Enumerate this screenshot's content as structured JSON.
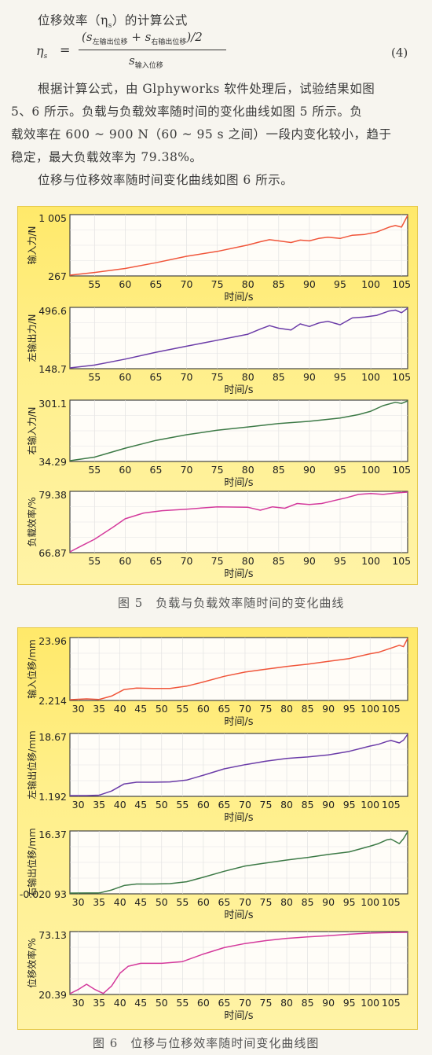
{
  "text": {
    "para1_label": "位移效率（η",
    "para1_sub": "s",
    "para1_rest": "）的计算公式",
    "eq_lhs": "η",
    "eq_lhs_sub": "s",
    "eq_eq": "=",
    "eq_num_open": "(s",
    "eq_num_s1": "左输出位移",
    "eq_num_plus": " + s",
    "eq_num_s2": "右输出位移",
    "eq_num_close": ")/2",
    "eq_den": "s",
    "eq_den_sub": "输入位移",
    "eq_no": "(4)",
    "line1": "根据计算公式，由 Glphyworks 软件处理后，试验结果如图",
    "line2": "5、6 所示。负载与负载效率随时间的变化曲线如图 5 所示。负",
    "line3": "载效率在 600 ~ 900 N（60 ~ 95 s 之间）一段内变化较小，趋于",
    "line4": "稳定，最大负载效率为 79.38%。",
    "line5": "位移与位移效率随时间变化曲线如图 6 所示。"
  },
  "figure5": {
    "caption": "图 5　负载与负载效率随时间的变化曲线",
    "xlabel": "时间/s",
    "xticks": [
      "55",
      "60",
      "65",
      "70",
      "75",
      "80",
      "85",
      "90",
      "95",
      "100",
      "105"
    ]
  },
  "figure6": {
    "caption": "图 6　位移与位移效率随时间变化曲线图",
    "xlabel": "时间/s",
    "xticks": [
      "30",
      "35",
      "40",
      "45",
      "50",
      "55",
      "60",
      "65",
      "70",
      "75",
      "80",
      "85",
      "90",
      "95",
      "100",
      "105"
    ]
  },
  "chart_data": [
    {
      "type": "line",
      "ylabel": "输入力/N",
      "ylim": [
        267,
        1005
      ],
      "ymax_label": "1 005",
      "ymin_label": "267",
      "color": "#f0553a",
      "x": [
        51,
        55,
        60,
        65,
        70,
        75,
        80,
        82,
        83.5,
        85,
        87,
        88.5,
        90,
        91.5,
        93,
        95,
        97,
        99,
        101,
        103,
        104,
        105,
        106
      ],
      "y": [
        267,
        300,
        350,
        420,
        500,
        560,
        640,
        680,
        705,
        690,
        670,
        700,
        690,
        720,
        735,
        720,
        760,
        770,
        800,
        860,
        880,
        860,
        1005
      ]
    },
    {
      "type": "line",
      "ylabel": "左输出力/N",
      "ylim": [
        148.7,
        496.6
      ],
      "ymax_label": "496.6",
      "ymin_label": "148.7",
      "color": "#6b3ca8",
      "x": [
        51,
        55,
        60,
        65,
        70,
        75,
        80,
        82,
        83.5,
        85,
        87,
        88.5,
        90,
        91.5,
        93,
        95,
        97,
        99,
        101,
        103,
        104,
        105,
        106
      ],
      "y": [
        148.7,
        165,
        200,
        240,
        275,
        310,
        345,
        375,
        395,
        380,
        370,
        405,
        390,
        410,
        420,
        400,
        440,
        445,
        455,
        480,
        485,
        470,
        496.6
      ]
    },
    {
      "type": "line",
      "ylabel": "右输入力/N",
      "ylim": [
        34.29,
        301.1
      ],
      "ymax_label": "301.1",
      "ymin_label": "34.29",
      "color": "#3d7a47",
      "x": [
        51,
        55,
        60,
        65,
        70,
        75,
        80,
        85,
        90,
        95,
        98,
        100,
        102,
        104,
        105,
        106
      ],
      "y": [
        34.29,
        50,
        90,
        125,
        150,
        170,
        185,
        200,
        210,
        225,
        240,
        255,
        280,
        295,
        290,
        301.1
      ]
    },
    {
      "type": "line",
      "ylabel": "负载效率/%",
      "ylim": [
        66.87,
        79.38
      ],
      "ymax_label": "79.38",
      "ymin_label": "66.87",
      "color": "#d43a9c",
      "x": [
        51,
        53,
        55,
        58,
        60,
        63,
        66,
        70,
        75,
        80,
        82,
        84,
        86,
        88,
        90,
        92,
        94,
        96,
        98,
        100,
        102,
        104,
        106
      ],
      "y": [
        66.87,
        68.2,
        69.5,
        72.0,
        73.8,
        75.0,
        75.5,
        75.8,
        76.3,
        76.2,
        75.6,
        76.3,
        76.0,
        77.0,
        76.8,
        77.0,
        77.6,
        78.2,
        78.9,
        79.1,
        78.9,
        79.2,
        79.38
      ]
    },
    {
      "type": "line",
      "ylabel": "输入位移/mm",
      "ylim": [
        2.214,
        23.96
      ],
      "ymax_label": "23.96",
      "ymin_label": "2.214",
      "color": "#f0553a",
      "x": [
        28,
        32,
        35,
        38,
        41,
        44,
        48,
        52,
        56,
        60,
        65,
        70,
        75,
        80,
        85,
        90,
        95,
        100,
        102,
        104,
        105,
        107,
        108,
        109
      ],
      "y": [
        2.214,
        2.5,
        2.3,
        3.5,
        5.8,
        6.3,
        6.2,
        6.2,
        7.0,
        8.5,
        10.5,
        12.0,
        13.0,
        14.0,
        14.8,
        15.8,
        16.8,
        18.5,
        19.0,
        20.0,
        20.5,
        21.5,
        21.0,
        23.96
      ]
    },
    {
      "type": "line",
      "ylabel": "左输出位移/mm",
      "ylim": [
        1.192,
        18.67
      ],
      "ymax_label": "18.67",
      "ymin_label": "1.192",
      "color": "#6b3ca8",
      "x": [
        28,
        32,
        35,
        38,
        41,
        44,
        48,
        52,
        56,
        60,
        65,
        70,
        75,
        80,
        85,
        90,
        95,
        100,
        102,
        104,
        105,
        107,
        108,
        109
      ],
      "y": [
        1.192,
        1.2,
        1.3,
        2.5,
        4.5,
        5.0,
        5.0,
        5.1,
        5.6,
        7.0,
        8.8,
        10.0,
        11.0,
        11.8,
        12.2,
        12.8,
        13.8,
        15.3,
        15.8,
        16.6,
        16.9,
        16.2,
        17.0,
        18.67
      ]
    },
    {
      "type": "line",
      "ylabel": "右输出位移/mm",
      "ylim": [
        -0.02093,
        16.37
      ],
      "ymax_label": "16.37",
      "ymin_label": "-0.020 93",
      "color": "#3d7a47",
      "x": [
        28,
        32,
        35,
        38,
        41,
        44,
        48,
        52,
        56,
        60,
        65,
        70,
        75,
        80,
        85,
        90,
        95,
        100,
        102,
        104,
        105,
        107,
        108,
        109
      ],
      "y": [
        -0.02093,
        0,
        0,
        0.8,
        2.0,
        2.4,
        2.4,
        2.5,
        3.0,
        4.2,
        5.8,
        7.2,
        8.0,
        8.8,
        9.5,
        10.3,
        11.0,
        12.5,
        13.2,
        14.2,
        14.4,
        13.2,
        14.5,
        16.37
      ]
    },
    {
      "type": "line",
      "ylabel": "位移效率/%",
      "ylim": [
        20.39,
        73.13
      ],
      "ymax_label": "73.13",
      "ymin_label": "20.39",
      "color": "#d43a9c",
      "x": [
        28,
        30,
        32,
        34,
        36,
        38,
        40,
        42,
        45,
        50,
        55,
        60,
        65,
        70,
        75,
        80,
        85,
        90,
        95,
        100,
        105,
        109
      ],
      "y": [
        20.39,
        24.0,
        28.5,
        24.0,
        20.6,
        27.0,
        38.0,
        44.0,
        46.5,
        46.5,
        48.0,
        54.5,
        60.0,
        63.5,
        66.0,
        68.0,
        69.2,
        70.2,
        71.5,
        72.5,
        73.0,
        73.13
      ]
    }
  ]
}
